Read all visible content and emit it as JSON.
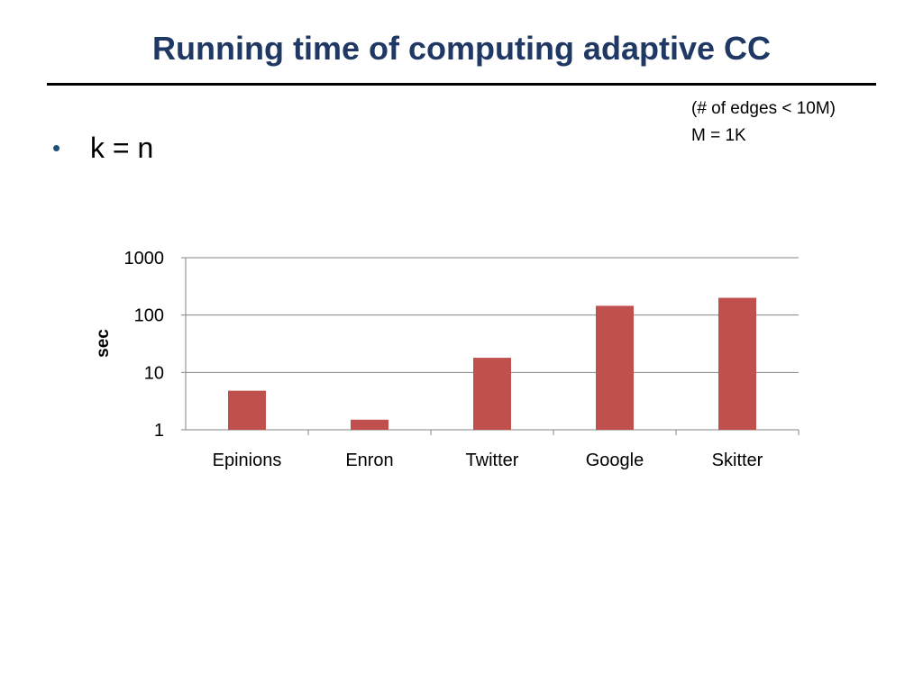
{
  "slide": {
    "title": "Running time of computing adaptive CC",
    "note_lines": [
      "(# of edges < 10M)",
      "M = 1K"
    ],
    "bullet": "k = n"
  },
  "chart_data": {
    "type": "bar",
    "categories": [
      "Epinions",
      "Enron",
      "Twitter",
      "Google",
      "Skitter"
    ],
    "values": [
      4.8,
      1.5,
      18,
      145,
      200
    ],
    "ylabel": "sec",
    "xlabel": "",
    "y_scale": "log",
    "ylim": [
      1,
      1000
    ],
    "y_ticks": [
      "1",
      "10",
      "100",
      "1000"
    ],
    "grid": true,
    "bar_color": "#c0504d"
  },
  "colors": {
    "title": "#1f3864",
    "bullet_dot": "#1f4e79",
    "grid": "#868686"
  }
}
